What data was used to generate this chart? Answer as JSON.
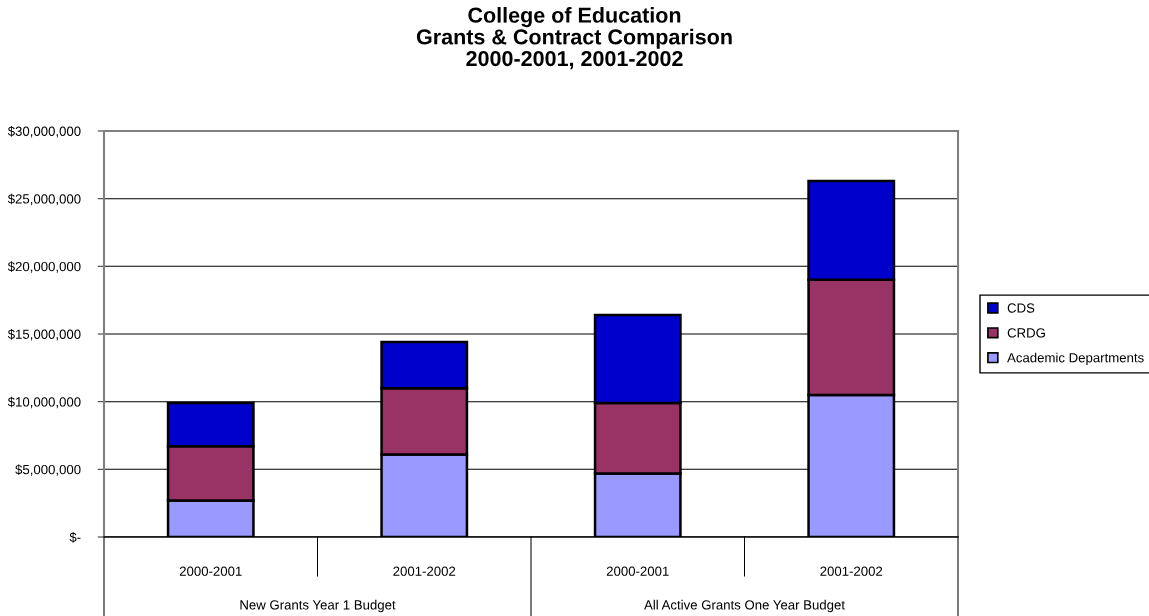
{
  "chart_data": {
    "type": "bar",
    "title": "College of Education\nGrants & Contract Comparison\n2000-2001, 2001-2002",
    "categories": [
      "2000-2001",
      "2001-2002",
      "2000-2001",
      "2001-2002"
    ],
    "annotations": [
      "New Grants Year 1 Budget",
      "All Active Grants One Year Budget"
    ],
    "stacked": true,
    "series": [
      {
        "name": "Academic Departments",
        "color": "#9999ff",
        "values": [
          2700000,
          6100000,
          4700000,
          10500000
        ]
      },
      {
        "name": "CRDG",
        "color": "#993366",
        "values": [
          4000000,
          4900000,
          5200000,
          8500000
        ]
      },
      {
        "name": "CDS",
        "color": "#0000cc",
        "values": [
          3200000,
          3400000,
          6500000,
          7300000
        ]
      }
    ],
    "ylim": [
      0,
      30000000
    ],
    "yticks": [
      {
        "value": 0,
        "label": "$-"
      },
      {
        "value": 5000000,
        "label": "$5,000,000"
      },
      {
        "value": 10000000,
        "label": "$10,000,000"
      },
      {
        "value": 15000000,
        "label": "$15,000,000"
      },
      {
        "value": 20000000,
        "label": "$20,000,000"
      },
      {
        "value": 25000000,
        "label": "$25,000,000"
      },
      {
        "value": 30000000,
        "label": "$30,000,000"
      }
    ],
    "grid": "y",
    "legend": "right"
  }
}
